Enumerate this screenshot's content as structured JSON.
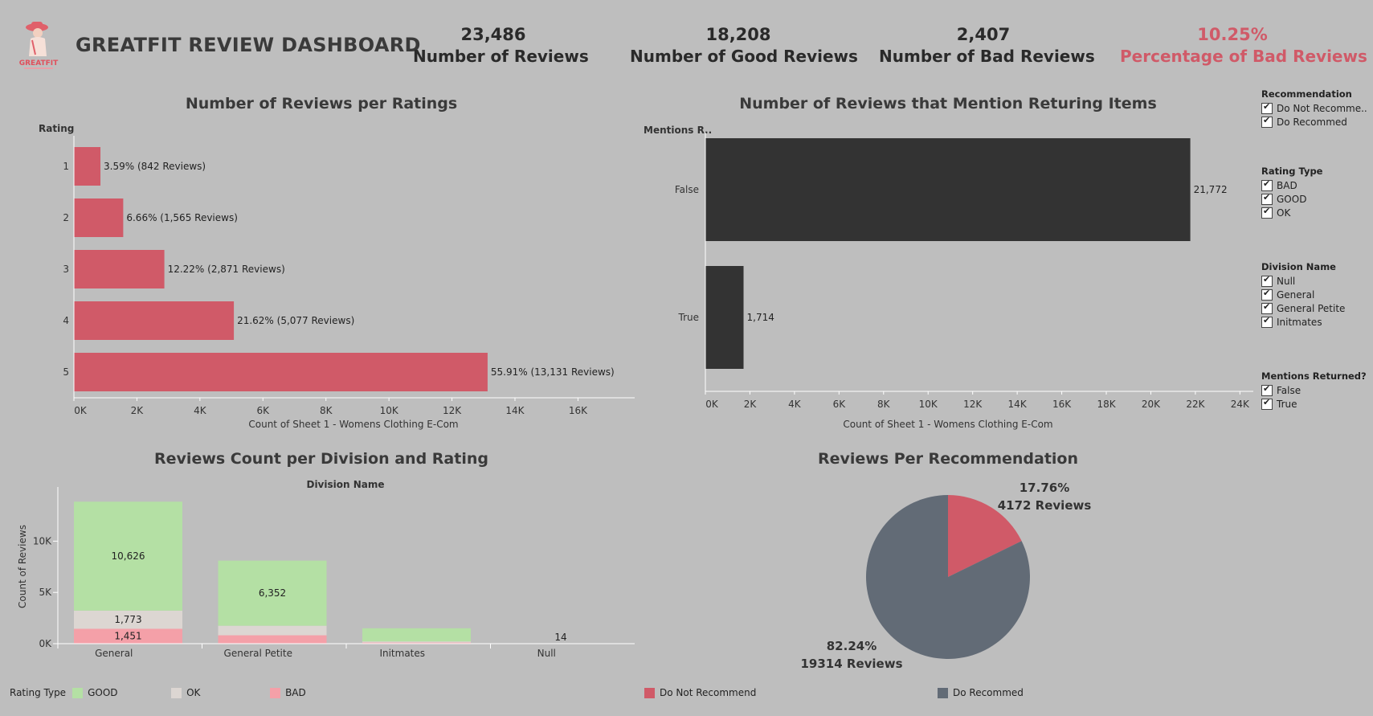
{
  "header": {
    "title": "GREATFIT REVIEW DASHBOARD",
    "logo_text": "GREATFIT",
    "kpis": [
      {
        "value": "23,486",
        "label": "Number of Reviews"
      },
      {
        "value": "18,208",
        "label": "Number of Good Reviews"
      },
      {
        "value": "2,407",
        "label": "Number of Bad Reviews"
      },
      {
        "value": "10.25%",
        "label": "Percentage of Bad Reviews"
      }
    ]
  },
  "colors": {
    "background": "#bebebe",
    "rating_bar": "#d05a68",
    "returns_bar": "#333333",
    "good": "#b4e0a4",
    "ok": "#dcd6d2",
    "bad": "#f4a0a8",
    "do_not_recommend": "#d05a68",
    "do_recommend": "#626b76",
    "kpi_highlight": "#d05a68"
  },
  "filters": [
    {
      "title": "Recommendation",
      "options": [
        "Do Not Recomme..",
        "Do Recommed"
      ]
    },
    {
      "title": "Rating Type",
      "options": [
        "BAD",
        "GOOD",
        "OK"
      ]
    },
    {
      "title": "Division Name",
      "options": [
        "Null",
        "General",
        "General Petite",
        "Initmates"
      ]
    },
    {
      "title": "Mentions Returned?",
      "options": [
        "False",
        "True"
      ]
    }
  ],
  "legends": {
    "rating_type": {
      "title": "Rating Type",
      "items": [
        "GOOD",
        "OK",
        "BAD"
      ]
    },
    "recommendation": {
      "items": [
        "Do Not Recommend",
        "Do Recommed"
      ]
    }
  },
  "chart_data": [
    {
      "type": "bar",
      "orientation": "horizontal",
      "title": "Number of Reviews per Ratings",
      "ylabel": "Rating",
      "xlabel": "Count of Sheet 1 - Womens Clothing E-Com",
      "categories": [
        "1",
        "2",
        "3",
        "4",
        "5"
      ],
      "values": [
        842,
        1565,
        2871,
        5077,
        13131
      ],
      "data_labels": [
        "3.59% (842 Reviews)",
        "6.66% (1,565 Reviews)",
        "12.22% (2,871 Reviews)",
        "21.62% (5,077 Reviews)",
        "55.91% (13,131 Reviews)"
      ],
      "xlim": [
        0,
        17800
      ],
      "xticks": [
        0,
        2000,
        4000,
        6000,
        8000,
        10000,
        12000,
        14000,
        16000
      ],
      "xtick_labels": [
        "0K",
        "2K",
        "4K",
        "6K",
        "8K",
        "10K",
        "12K",
        "14K",
        "16K"
      ]
    },
    {
      "type": "bar",
      "orientation": "horizontal",
      "title": "Number of Reviews that Mention Returing Items",
      "ylabel": "Mentions R..",
      "xlabel": "Count of Sheet 1 - Womens Clothing E-Com",
      "categories": [
        "False",
        "True"
      ],
      "values": [
        21772,
        1714
      ],
      "data_labels": [
        "21,772",
        "1,714"
      ],
      "xlim": [
        0,
        24600
      ],
      "xticks": [
        0,
        2000,
        4000,
        6000,
        8000,
        10000,
        12000,
        14000,
        16000,
        18000,
        20000,
        22000,
        24000
      ],
      "xtick_labels": [
        "0K",
        "2K",
        "4K",
        "6K",
        "8K",
        "10K",
        "12K",
        "14K",
        "16K",
        "18K",
        "20K",
        "22K",
        "24K"
      ]
    },
    {
      "type": "bar",
      "stacked": true,
      "title": "Reviews Count per Division and Rating",
      "xlabel": "Division Name",
      "ylabel": "Count of Reviews",
      "categories": [
        "General",
        "General Petite",
        "Initmates",
        "Null"
      ],
      "series": [
        {
          "name": "BAD",
          "values": [
            1451,
            820,
            110,
            2
          ],
          "labels": [
            "1,451",
            "",
            "",
            ""
          ]
        },
        {
          "name": "OK",
          "values": [
            1773,
            930,
            110,
            2
          ],
          "labels": [
            "1,773",
            "",
            "",
            ""
          ]
        },
        {
          "name": "GOOD",
          "values": [
            10626,
            6352,
            1280,
            10
          ],
          "labels": [
            "10,626",
            "6,352",
            "",
            ""
          ]
        }
      ],
      "total_labels": [
        "",
        "",
        "",
        "14"
      ],
      "ylim": [
        0,
        14500
      ],
      "yticks": [
        0,
        5000,
        10000
      ],
      "ytick_labels": [
        "0K",
        "5K",
        "10K"
      ]
    },
    {
      "type": "pie",
      "title": "Reviews Per Recommendation",
      "slices": [
        {
          "name": "Do Not Recommend",
          "value": 4172,
          "percent": "17.76%",
          "label": "4172 Reviews"
        },
        {
          "name": "Do Recommed",
          "value": 19314,
          "percent": "82.24%",
          "label": "19314 Reviews"
        }
      ]
    }
  ]
}
